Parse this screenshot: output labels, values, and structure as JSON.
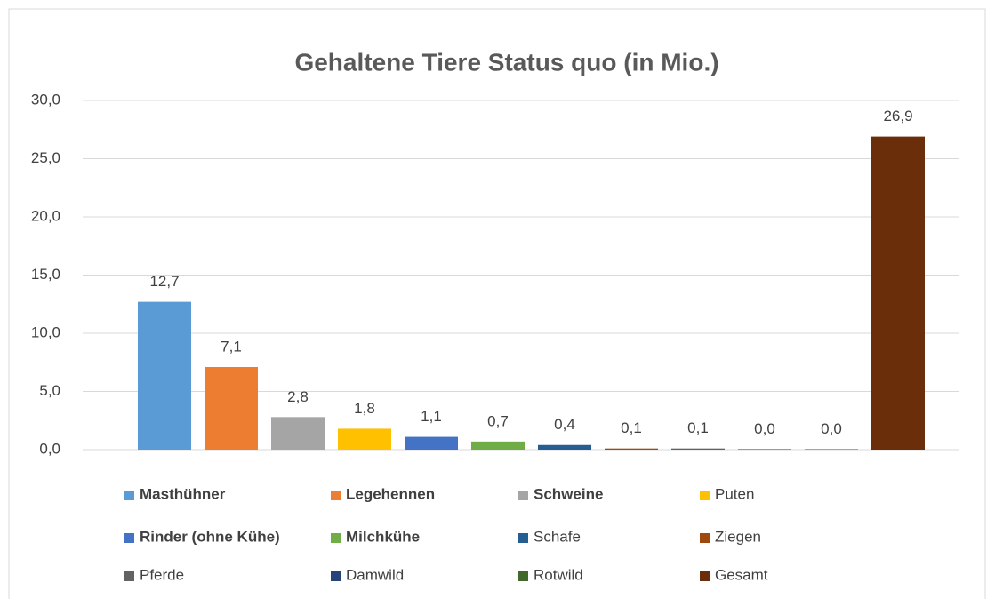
{
  "chart_data": {
    "type": "bar",
    "title": "Gehaltene Tiere Status quo (in Mio.)",
    "series": [
      {
        "name": "Masthühner",
        "color": "#5b9bd5",
        "bold": true,
        "values": [
          12.7
        ],
        "value_labels": [
          "12,7"
        ]
      },
      {
        "name": "Legehennen",
        "color": "#ed7d31",
        "bold": true,
        "values": [
          7.1
        ],
        "value_labels": [
          "7,1"
        ]
      },
      {
        "name": "Schweine",
        "color": "#a5a5a5",
        "bold": true,
        "values": [
          2.8
        ],
        "value_labels": [
          "2,8"
        ]
      },
      {
        "name": "Puten",
        "color": "#ffc000",
        "bold": false,
        "values": [
          1.8
        ],
        "value_labels": [
          "1,8"
        ]
      },
      {
        "name": "Rinder (ohne Kühe)",
        "color": "#4472c4",
        "bold": true,
        "values": [
          1.1
        ],
        "value_labels": [
          "1,1"
        ]
      },
      {
        "name": "Milchkühe",
        "color": "#70ad47",
        "bold": true,
        "values": [
          0.7
        ],
        "value_labels": [
          "0,7"
        ]
      },
      {
        "name": "Schafe",
        "color": "#255e91",
        "bold": false,
        "values": [
          0.4
        ],
        "value_labels": [
          "0,4"
        ]
      },
      {
        "name": "Ziegen",
        "color": "#9e480e",
        "bold": false,
        "values": [
          0.1
        ],
        "value_labels": [
          "0,1"
        ]
      },
      {
        "name": "Pferde",
        "color": "#636363",
        "bold": false,
        "values": [
          0.1
        ],
        "value_labels": [
          "0,1"
        ]
      },
      {
        "name": "Damwild",
        "color": "#264478",
        "bold": false,
        "values": [
          0.04
        ],
        "value_labels": [
          "0,0"
        ]
      },
      {
        "name": "Rotwild",
        "color": "#43682b",
        "bold": false,
        "values": [
          0.04
        ],
        "value_labels": [
          "0,0"
        ]
      },
      {
        "name": "Gesamt",
        "color": "#6a2f0a",
        "bold": false,
        "values": [
          26.9
        ],
        "value_labels": [
          "26,9"
        ]
      }
    ],
    "ylim": [
      0,
      30
    ],
    "yticks": [
      {
        "value": 0,
        "label": "0,0"
      },
      {
        "value": 5,
        "label": "5,0"
      },
      {
        "value": 10,
        "label": "10,0"
      },
      {
        "value": 15,
        "label": "15,0"
      },
      {
        "value": 20,
        "label": "20,0"
      },
      {
        "value": 25,
        "label": "25,0"
      },
      {
        "value": 30,
        "label": "30,0"
      }
    ],
    "grid": true
  }
}
